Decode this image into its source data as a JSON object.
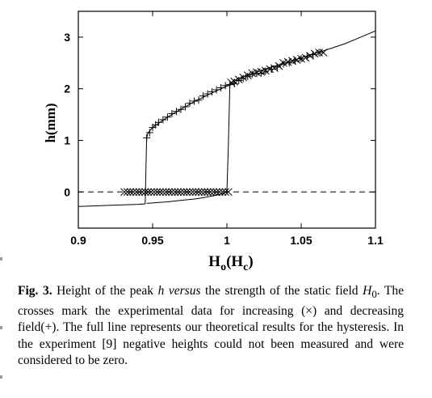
{
  "chart_data": {
    "type": "scatter",
    "xlabel": "H",
    "xlabel_sub": "o",
    "xlabel_paren_open": "(",
    "xlabel_unit": "H",
    "xlabel_unit_sub": "c",
    "xlabel_paren_close": ")",
    "ylabel": "h(mm)",
    "xlim": [
      0.9,
      1.1
    ],
    "ylim": [
      -0.7,
      3.5
    ],
    "xticks": [
      "0.9",
      "0.95",
      "1",
      "1.05",
      "1.1"
    ],
    "yticks": [
      "0",
      "1",
      "2",
      "3"
    ],
    "grid": false,
    "series": [
      {
        "kind": "theory-line",
        "style": "solid",
        "x": [
          0.9,
          0.92,
          0.94,
          0.945,
          0.946,
          0.947,
          0.95,
          0.955,
          0.96,
          0.97,
          0.98,
          0.99,
          1.0,
          1.002,
          1.005,
          1.01,
          1.02,
          1.03,
          1.04,
          1.05,
          1.06,
          1.07,
          1.08,
          1.09,
          1.1
        ],
        "y": [
          -0.28,
          -0.26,
          -0.24,
          -0.23,
          1.05,
          1.15,
          1.25,
          1.35,
          1.45,
          1.62,
          1.78,
          1.92,
          2.05,
          2.1,
          2.16,
          2.22,
          2.32,
          2.42,
          2.51,
          2.6,
          2.69,
          2.78,
          2.88,
          3.0,
          3.12
        ]
      },
      {
        "kind": "theory-line",
        "style": "solid",
        "x": [
          0.946,
          0.96,
          0.97,
          0.98,
          0.99,
          0.995,
          1.0,
          1.001,
          1.002
        ],
        "y": [
          -0.22,
          -0.19,
          -0.16,
          -0.13,
          -0.08,
          -0.05,
          0.0,
          0.9,
          2.1
        ]
      },
      {
        "kind": "zero-line",
        "style": "dashed",
        "x": [
          0.9,
          1.1
        ],
        "y": [
          0,
          0
        ]
      },
      {
        "kind": "increasing-field",
        "marker": "x",
        "x": [
          0.931,
          0.933,
          0.935,
          0.937,
          0.939,
          0.941,
          0.943,
          0.945,
          0.947,
          0.949,
          0.951,
          0.953,
          0.955,
          0.957,
          0.959,
          0.961,
          0.963,
          0.965,
          0.967,
          0.969,
          0.971,
          0.973,
          0.975,
          0.977,
          0.979,
          0.981,
          0.983,
          0.985,
          0.987,
          0.989,
          0.991,
          0.993,
          0.995,
          0.997,
          0.999,
          1.001,
          1.003,
          1.005,
          1.008,
          1.011,
          1.014,
          1.017,
          1.02,
          1.023,
          1.026,
          1.029,
          1.032,
          1.035,
          1.038,
          1.041,
          1.044,
          1.047,
          1.05,
          1.053,
          1.056,
          1.059,
          1.062,
          1.065
        ],
        "y": [
          0,
          0,
          0,
          0,
          0,
          0,
          0,
          0,
          0,
          0,
          0,
          0,
          0,
          0,
          0,
          0,
          0,
          0,
          0,
          0,
          0,
          0,
          0,
          0,
          0,
          0,
          0,
          0,
          0,
          0,
          0,
          0,
          0,
          0,
          0,
          0,
          2.12,
          2.14,
          2.18,
          2.22,
          2.26,
          2.3,
          2.32,
          2.33,
          2.35,
          2.38,
          2.4,
          2.44,
          2.5,
          2.52,
          2.54,
          2.56,
          2.58,
          2.6,
          2.64,
          2.68,
          2.7,
          2.7
        ]
      },
      {
        "kind": "decreasing-field",
        "marker": "+",
        "x": [
          0.946,
          0.948,
          0.95,
          0.952,
          0.954,
          0.957,
          0.96,
          0.963,
          0.966,
          0.969,
          0.972,
          0.975,
          0.978,
          0.981,
          0.984,
          0.987,
          0.99,
          0.993,
          0.996,
          0.999,
          1.002,
          1.005,
          1.008,
          1.011,
          1.014,
          1.017,
          1.02,
          1.023,
          1.026,
          1.03,
          1.034,
          1.038,
          1.042,
          1.046,
          1.05,
          1.054,
          1.058,
          1.062
        ],
        "y": [
          1.05,
          1.15,
          1.25,
          1.3,
          1.35,
          1.4,
          1.45,
          1.52,
          1.56,
          1.6,
          1.65,
          1.72,
          1.76,
          1.78,
          1.86,
          1.9,
          1.94,
          1.98,
          2.02,
          2.06,
          2.08,
          2.1,
          2.16,
          2.2,
          2.24,
          2.28,
          2.3,
          2.3,
          2.34,
          2.38,
          2.42,
          2.48,
          2.5,
          2.54,
          2.58,
          2.62,
          2.66,
          2.7
        ]
      }
    ]
  },
  "caption": {
    "label": "Fig. 3.",
    "t1": " Height of the peak ",
    "h": "h",
    "t2": " ",
    "versus": "versus",
    "t3": " the strength of the static field ",
    "H": "H",
    "Hsub": "0",
    "t4": ". The crosses mark the experimental data for increasing (×) and decreasing field(+). The full line represents our theoretical results for the hysteresis. In the experiment [9] negative heights could not been measured and were considered to be zero."
  }
}
